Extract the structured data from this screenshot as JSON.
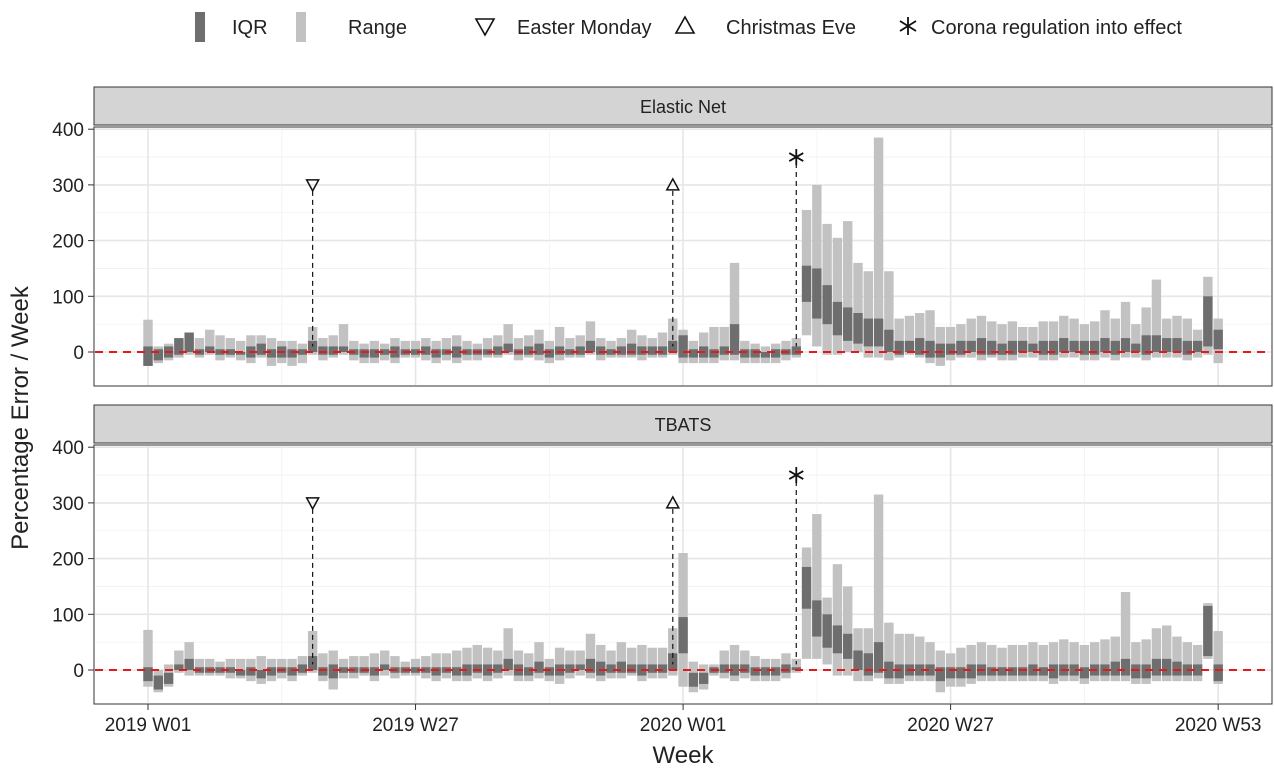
{
  "legend": {
    "items": [
      {
        "key": "iqr",
        "label": "IQR",
        "symbol": "dark-bar",
        "color": "#6e6e6e"
      },
      {
        "key": "range",
        "label": "Range",
        "symbol": "light-bar",
        "color": "#c2c2c2"
      },
      {
        "key": "easter",
        "label": "Easter Monday",
        "symbol": "triangle-down-icon"
      },
      {
        "key": "christmas",
        "label": "Christmas Eve",
        "symbol": "triangle-up-icon"
      },
      {
        "key": "corona",
        "label": "Corona regulation into effect",
        "symbol": "asterisk-icon"
      }
    ]
  },
  "colors": {
    "iqr": "#6e6e6e",
    "range": "#c2c2c2",
    "zero_line": "#e31a1c",
    "strip": "#d4d4d4",
    "grid": "#e6e6e6"
  },
  "chart_data": {
    "type": "bar",
    "xlabel": "Week",
    "ylabel": "Percentage Error / Week",
    "x_ticks": [
      "2019 W01",
      "2019 W27",
      "2020 W01",
      "2020 W27",
      "2020 W53"
    ],
    "x_tick_weeks": [
      1,
      27,
      53,
      79,
      105
    ],
    "ylim": [
      -60,
      410
    ],
    "y_ticks": [
      0,
      100,
      200,
      300,
      400
    ],
    "grid": true,
    "legend_position": "top",
    "zero_reference_line": 0,
    "events": [
      {
        "label": "Easter Monday",
        "week": 17,
        "marker_y": 300
      },
      {
        "label": "Christmas Eve",
        "week": 52,
        "marker_y": 300
      },
      {
        "label": "Corona regulation into effect",
        "week": 64,
        "marker_y": 350
      }
    ],
    "panels": [
      {
        "title": "Elastic Net",
        "weeks_start": 1,
        "range_low": [
          -25,
          -20,
          -15,
          -10,
          -5,
          -10,
          -5,
          -15,
          -10,
          -15,
          -20,
          -10,
          -25,
          -20,
          -25,
          -20,
          -5,
          -15,
          -10,
          -5,
          -15,
          -20,
          -20,
          -15,
          -20,
          -10,
          -10,
          -15,
          -20,
          -15,
          -20,
          -15,
          -15,
          -10,
          -10,
          -5,
          -15,
          -10,
          -15,
          -20,
          -15,
          -10,
          -10,
          -5,
          -15,
          -10,
          -10,
          -10,
          -15,
          -10,
          -10,
          -5,
          -20,
          -20,
          -20,
          -20,
          -15,
          -15,
          -20,
          -20,
          -20,
          -20,
          -15,
          -10,
          30,
          10,
          -5,
          -5,
          0,
          0,
          -10,
          -10,
          -15,
          -10,
          -5,
          -10,
          -20,
          -25,
          -15,
          -10,
          -10,
          -15,
          -10,
          -15,
          -15,
          -10,
          -10,
          -15,
          -15,
          -10,
          -10,
          -15,
          -15,
          -10,
          -15,
          -10,
          -10,
          -15,
          -10,
          -10,
          -10,
          -15,
          -10,
          -5,
          -20
        ],
        "range_high": [
          58,
          10,
          15,
          20,
          25,
          25,
          40,
          30,
          25,
          20,
          30,
          30,
          25,
          20,
          20,
          15,
          45,
          25,
          30,
          50,
          20,
          15,
          20,
          15,
          25,
          20,
          20,
          25,
          20,
          25,
          30,
          20,
          15,
          25,
          30,
          50,
          25,
          30,
          40,
          20,
          45,
          25,
          30,
          55,
          25,
          20,
          25,
          40,
          30,
          25,
          35,
          60,
          40,
          20,
          35,
          45,
          45,
          160,
          20,
          15,
          10,
          15,
          20,
          25,
          255,
          300,
          230,
          205,
          235,
          160,
          145,
          385,
          145,
          60,
          65,
          70,
          75,
          45,
          45,
          50,
          60,
          65,
          55,
          50,
          55,
          45,
          45,
          55,
          55,
          65,
          60,
          50,
          55,
          75,
          60,
          90,
          50,
          80,
          130,
          60,
          65,
          60,
          40,
          135,
          60
        ],
        "iqr_low": [
          -25,
          -15,
          -10,
          -5,
          0,
          -5,
          0,
          -5,
          -5,
          -5,
          -10,
          -5,
          -10,
          -10,
          -10,
          -5,
          0,
          -5,
          -5,
          0,
          -5,
          -10,
          -10,
          -5,
          -10,
          -5,
          -5,
          -5,
          -10,
          -5,
          -10,
          -5,
          -5,
          -5,
          -5,
          0,
          -5,
          -5,
          -5,
          -10,
          -5,
          -5,
          -5,
          0,
          -5,
          -5,
          -5,
          -5,
          -5,
          -5,
          -5,
          0,
          -10,
          -10,
          -10,
          -10,
          -5,
          -5,
          -10,
          -10,
          -10,
          -10,
          -5,
          -5,
          90,
          60,
          50,
          30,
          20,
          15,
          10,
          10,
          0,
          -5,
          0,
          -5,
          -10,
          -10,
          -5,
          -5,
          0,
          -5,
          -5,
          -5,
          -5,
          0,
          0,
          -5,
          -5,
          0,
          0,
          -5,
          -5,
          0,
          -5,
          0,
          0,
          -5,
          0,
          0,
          0,
          -5,
          0,
          10,
          5
        ],
        "iqr_high": [
          10,
          5,
          10,
          25,
          35,
          5,
          10,
          5,
          5,
          0,
          10,
          15,
          5,
          10,
          5,
          5,
          20,
          10,
          10,
          10,
          5,
          5,
          5,
          5,
          10,
          5,
          5,
          10,
          5,
          5,
          10,
          5,
          5,
          5,
          10,
          15,
          5,
          10,
          15,
          5,
          10,
          5,
          10,
          20,
          10,
          5,
          10,
          15,
          10,
          10,
          10,
          20,
          30,
          5,
          10,
          5,
          10,
          50,
          5,
          5,
          0,
          5,
          5,
          10,
          155,
          150,
          120,
          90,
          80,
          70,
          60,
          60,
          40,
          20,
          20,
          25,
          20,
          15,
          15,
          20,
          20,
          25,
          20,
          15,
          20,
          20,
          15,
          20,
          20,
          25,
          20,
          20,
          20,
          25,
          20,
          25,
          15,
          30,
          30,
          25,
          25,
          20,
          20,
          100,
          40
        ]
      },
      {
        "title": "TBATS",
        "weeks_start": 1,
        "range_low": [
          -30,
          -40,
          -30,
          -5,
          -10,
          -10,
          -10,
          -10,
          -15,
          -15,
          -20,
          -25,
          -20,
          -15,
          -20,
          -10,
          -5,
          -20,
          -35,
          -15,
          -15,
          -10,
          -20,
          -10,
          -15,
          -10,
          -10,
          -15,
          -20,
          -15,
          -20,
          -20,
          -15,
          -20,
          -15,
          -10,
          -20,
          -20,
          -15,
          -20,
          -25,
          -15,
          -10,
          -15,
          -20,
          -15,
          -15,
          -10,
          -20,
          -15,
          -15,
          -10,
          -30,
          -40,
          -35,
          -10,
          -15,
          -20,
          -15,
          -20,
          -20,
          -20,
          -15,
          -5,
          20,
          20,
          10,
          -10,
          -10,
          -20,
          -20,
          -15,
          -25,
          -25,
          -20,
          -20,
          -20,
          -40,
          -30,
          -30,
          -25,
          -20,
          -20,
          -20,
          -20,
          -20,
          -20,
          -20,
          -25,
          -20,
          -20,
          -25,
          -20,
          -20,
          -20,
          -20,
          -25,
          -25,
          -20,
          -20,
          -20,
          -20,
          -20,
          20,
          -25
        ],
        "range_high": [
          72,
          0,
          10,
          35,
          50,
          20,
          20,
          15,
          20,
          20,
          20,
          25,
          20,
          20,
          20,
          25,
          70,
          30,
          35,
          20,
          25,
          25,
          30,
          35,
          25,
          15,
          20,
          25,
          30,
          30,
          35,
          40,
          45,
          40,
          35,
          75,
          35,
          30,
          50,
          20,
          40,
          35,
          35,
          65,
          45,
          35,
          50,
          40,
          45,
          40,
          40,
          75,
          210,
          15,
          10,
          10,
          35,
          45,
          35,
          25,
          20,
          20,
          30,
          20,
          220,
          280,
          130,
          190,
          150,
          75,
          75,
          315,
          85,
          65,
          65,
          60,
          50,
          35,
          30,
          40,
          45,
          50,
          45,
          40,
          45,
          45,
          50,
          45,
          50,
          55,
          50,
          45,
          50,
          55,
          60,
          140,
          50,
          55,
          75,
          80,
          60,
          50,
          45,
          120,
          70
        ],
        "iqr_low": [
          -20,
          -35,
          -25,
          0,
          0,
          -5,
          -5,
          -5,
          -5,
          -10,
          -10,
          -15,
          -10,
          -5,
          -10,
          -5,
          0,
          -10,
          -15,
          -5,
          -5,
          -5,
          -10,
          0,
          -5,
          -5,
          -5,
          -5,
          -10,
          -5,
          -10,
          -10,
          -5,
          -10,
          -5,
          0,
          -10,
          -10,
          -5,
          -10,
          -10,
          -5,
          0,
          -5,
          -10,
          -5,
          -5,
          -5,
          -10,
          -5,
          -5,
          0,
          30,
          -30,
          -25,
          -5,
          -5,
          -10,
          -5,
          -10,
          -10,
          -10,
          -5,
          0,
          110,
          60,
          40,
          30,
          20,
          0,
          -10,
          -5,
          -15,
          -15,
          -10,
          -10,
          -10,
          -20,
          -15,
          -15,
          -15,
          -10,
          -10,
          -10,
          -10,
          -10,
          -10,
          -10,
          -15,
          -10,
          -10,
          -15,
          -10,
          -10,
          -10,
          -10,
          -15,
          -15,
          -10,
          -10,
          -10,
          -10,
          -10,
          25,
          -20
        ],
        "iqr_high": [
          5,
          -10,
          -5,
          10,
          20,
          5,
          5,
          5,
          5,
          0,
          5,
          0,
          5,
          5,
          5,
          10,
          25,
          5,
          10,
          5,
          5,
          5,
          5,
          10,
          5,
          5,
          5,
          5,
          5,
          5,
          5,
          10,
          10,
          10,
          10,
          20,
          10,
          5,
          15,
          5,
          10,
          10,
          10,
          20,
          15,
          10,
          15,
          10,
          10,
          10,
          10,
          30,
          95,
          -5,
          -5,
          5,
          10,
          10,
          10,
          5,
          5,
          5,
          10,
          5,
          185,
          125,
          100,
          80,
          65,
          35,
          30,
          50,
          15,
          10,
          10,
          10,
          10,
          5,
          5,
          5,
          10,
          10,
          5,
          5,
          5,
          5,
          10,
          5,
          10,
          10,
          10,
          5,
          10,
          10,
          15,
          20,
          10,
          10,
          20,
          20,
          15,
          10,
          10,
          115,
          10
        ]
      }
    ]
  }
}
